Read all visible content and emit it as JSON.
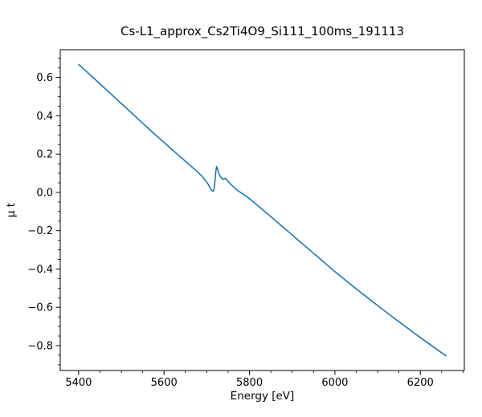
{
  "chart_data": {
    "type": "line",
    "title": "Cs-L1_approx_Cs2Ti4O9_Si111_100ms_191113",
    "xlabel": "Energy [eV]",
    "ylabel": "μ t",
    "xlim": [
      5357,
      6303
    ],
    "ylim": [
      -0.93,
      0.745
    ],
    "x_major_ticks": [
      5400,
      5600,
      5800,
      6000,
      6200
    ],
    "x_tick_labels": [
      "5400",
      "5600",
      "5800",
      "6000",
      "6200"
    ],
    "x_minor_step": 50,
    "y_major_ticks": [
      -0.8,
      -0.6,
      -0.4,
      -0.2,
      0.0,
      0.2,
      0.4,
      0.6
    ],
    "y_tick_labels": [
      "−0.8",
      "−0.6",
      "−0.4",
      "−0.2",
      "0.0",
      "0.2",
      "0.4",
      "0.6"
    ],
    "y_minor_step": 0.05,
    "grid": false,
    "legend": null,
    "line_color": "#1f77b4",
    "axes_color": "#000000",
    "series": [
      {
        "name": "mu_t",
        "x": [
          5400,
          5410,
          5420,
          5440,
          5460,
          5480,
          5500,
          5520,
          5540,
          5560,
          5580,
          5600,
          5620,
          5640,
          5660,
          5680,
          5690,
          5698,
          5704,
          5708,
          5712,
          5715,
          5717,
          5719,
          5721,
          5723,
          5725,
          5728,
          5731,
          5735,
          5739,
          5743,
          5747,
          5752,
          5758,
          5766,
          5776,
          5790,
          5800,
          5820,
          5840,
          5860,
          5880,
          5900,
          5920,
          5940,
          5960,
          5980,
          6000,
          6020,
          6040,
          6060,
          6080,
          6100,
          6120,
          6140,
          6160,
          6180,
          6200,
          6220,
          6240,
          6260
        ],
        "y": [
          0.668,
          0.648,
          0.628,
          0.587,
          0.546,
          0.505,
          0.464,
          0.423,
          0.382,
          0.341,
          0.3,
          0.261,
          0.221,
          0.182,
          0.143,
          0.104,
          0.082,
          0.06,
          0.04,
          0.022,
          0.01,
          0.006,
          0.015,
          0.055,
          0.105,
          0.135,
          0.126,
          0.1,
          0.086,
          0.074,
          0.069,
          0.073,
          0.066,
          0.052,
          0.038,
          0.022,
          0.004,
          -0.016,
          -0.033,
          -0.07,
          -0.108,
          -0.146,
          -0.184,
          -0.222,
          -0.261,
          -0.299,
          -0.337,
          -0.376,
          -0.414,
          -0.45,
          -0.486,
          -0.521,
          -0.556,
          -0.591,
          -0.625,
          -0.659,
          -0.692,
          -0.725,
          -0.758,
          -0.79,
          -0.822,
          -0.853
        ]
      }
    ]
  }
}
